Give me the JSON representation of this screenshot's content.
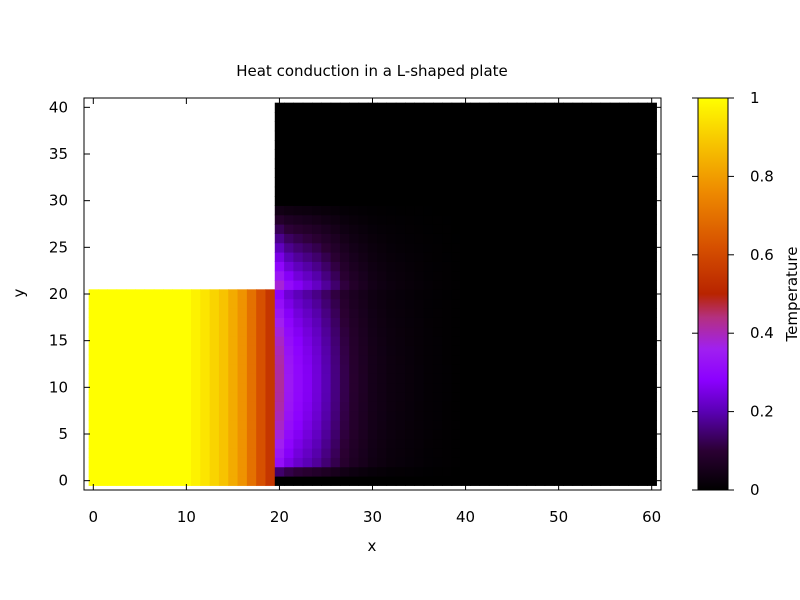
{
  "chart_data": {
    "type": "heatmap",
    "title": "Heat conduction in a L-shaped plate",
    "xlabel": "x",
    "ylabel": "y",
    "colorbar_label": "Temperature",
    "xlim": [
      -1,
      61
    ],
    "ylim": [
      -1,
      41
    ],
    "xticks": [
      "0",
      "10",
      "20",
      "30",
      "40",
      "50",
      "60"
    ],
    "yticks": [
      "0",
      "5",
      "10",
      "15",
      "20",
      "25",
      "30",
      "35",
      "40"
    ],
    "cticks": [
      "0",
      "0.2",
      "0.4",
      "0.6",
      "0.8",
      "1"
    ],
    "clim": [
      0,
      1
    ],
    "colormap": [
      "#000000",
      "#2b0033",
      "#6a00cc",
      "#8b00ff",
      "#b41ee0",
      "#b92800",
      "#dd5a00",
      "#f09600",
      "#f7c800",
      "#ffff00"
    ],
    "grid": {
      "x_min": 0,
      "x_max": 60,
      "y_min": 0,
      "y_max": 40,
      "x_step": 1,
      "y_step": 1,
      "missing_region": {
        "x_from": 0,
        "x_to": 19,
        "y_from": 21,
        "y_to": 40
      }
    },
    "temperature_profile": {
      "left_strip_x": [
        0,
        5,
        10,
        12,
        14,
        16,
        17,
        18,
        19
      ],
      "left_strip_t": [
        1.0,
        1.0,
        1.0,
        0.95,
        0.88,
        0.78,
        0.7,
        0.62,
        0.55
      ],
      "right_region_x": [
        20,
        21,
        22,
        23,
        24,
        25,
        26,
        27,
        28,
        29,
        30,
        32,
        34,
        36,
        40,
        60
      ],
      "right_region_t": [
        0.42,
        0.34,
        0.3,
        0.27,
        0.24,
        0.2,
        0.16,
        0.12,
        0.09,
        0.07,
        0.05,
        0.03,
        0.02,
        0.01,
        0.0,
        0.0
      ],
      "boundary_y_values": [
        0,
        21,
        22,
        24,
        26,
        28,
        30,
        34,
        40
      ],
      "boundary_cold_x_from": 20,
      "boundary_cold_y": 0
    }
  }
}
